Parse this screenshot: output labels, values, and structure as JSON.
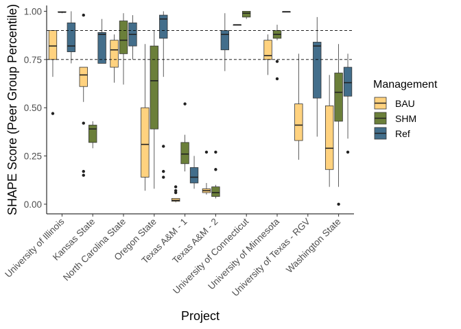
{
  "chart_data": {
    "type": "boxplot",
    "xlabel": "Project",
    "ylabel": "SHAPE Score (Peer Group Percentile)",
    "ylim": [
      -0.05,
      1.03
    ],
    "yticks": [
      0.0,
      0.25,
      0.5,
      0.75,
      1.0
    ],
    "ytick_labels": [
      "0.00",
      "0.25",
      "0.50",
      "0.75",
      "1.00"
    ],
    "reference_lines": [
      0.75,
      0.9
    ],
    "grid": false,
    "legend_position": "right",
    "legend_title": "Management",
    "series": [
      {
        "name": "BAU",
        "color": "#FFD27F"
      },
      {
        "name": "SHM",
        "color": "#6B7F3A"
      },
      {
        "name": "Ref",
        "color": "#436E8B"
      }
    ],
    "categories": [
      "University of Illinois",
      "Kansas State",
      "North Carolina State",
      "Oregon State",
      "Texas A&M - 1",
      "Texas A&M - 2",
      "University of Connecticut",
      "University of Minnesota",
      "University of Texas - RGV",
      "Washington State"
    ],
    "boxes": [
      {
        "category": "University of Illinois",
        "series": "BAU",
        "whisker_low": 0.66,
        "q1": 0.75,
        "median": 0.82,
        "q3": 0.9,
        "whisker_high": 0.9,
        "outliers": [
          0.47
        ]
      },
      {
        "category": "University of Illinois",
        "series": "SHM",
        "whisker_low": 0.99,
        "q1": 0.995,
        "median": 0.995,
        "q3": 0.998,
        "whisker_high": 1.0,
        "outliers": []
      },
      {
        "category": "University of Illinois",
        "series": "Ref",
        "whisker_low": 0.73,
        "q1": 0.79,
        "median": 0.82,
        "q3": 0.94,
        "whisker_high": 1.0,
        "outliers": []
      },
      {
        "category": "Kansas State",
        "series": "BAU",
        "whisker_low": 0.53,
        "q1": 0.61,
        "median": 0.67,
        "q3": 0.71,
        "whisker_high": 0.71,
        "outliers": [
          0.98,
          0.42,
          0.17,
          0.15
        ]
      },
      {
        "category": "Kansas State",
        "series": "SHM",
        "whisker_low": 0.29,
        "q1": 0.32,
        "median": 0.39,
        "q3": 0.41,
        "whisker_high": 0.43,
        "outliers": []
      },
      {
        "category": "Kansas State",
        "series": "Ref",
        "whisker_low": 0.73,
        "q1": 0.73,
        "median": 0.88,
        "q3": 0.89,
        "whisker_high": 0.96,
        "outliers": []
      },
      {
        "category": "North Carolina State",
        "series": "BAU",
        "whisker_low": 0.63,
        "q1": 0.71,
        "median": 0.8,
        "q3": 0.85,
        "whisker_high": 0.88,
        "outliers": []
      },
      {
        "category": "North Carolina State",
        "series": "SHM",
        "whisker_low": 0.62,
        "q1": 0.78,
        "median": 0.85,
        "q3": 0.95,
        "whisker_high": 0.99,
        "outliers": []
      },
      {
        "category": "North Carolina State",
        "series": "Ref",
        "whisker_low": 0.75,
        "q1": 0.82,
        "median": 0.88,
        "q3": 0.94,
        "whisker_high": 0.98,
        "outliers": []
      },
      {
        "category": "Oregon State",
        "series": "BAU",
        "whisker_low": 0.07,
        "q1": 0.14,
        "median": 0.31,
        "q3": 0.5,
        "whisker_high": 0.83,
        "outliers": []
      },
      {
        "category": "Oregon State",
        "series": "SHM",
        "whisker_low": 0.08,
        "q1": 0.39,
        "median": 0.64,
        "q3": 0.82,
        "whisker_high": 0.9,
        "outliers": []
      },
      {
        "category": "Oregon State",
        "series": "Ref",
        "whisker_low": 0.66,
        "q1": 0.86,
        "median": 0.96,
        "q3": 0.98,
        "whisker_high": 1.0,
        "outliers": [
          0.3,
          0.17,
          0.14
        ]
      },
      {
        "category": "Texas A&M - 1",
        "series": "BAU",
        "whisker_low": 0.01,
        "q1": 0.015,
        "median": 0.02,
        "q3": 0.03,
        "whisker_high": 0.03,
        "outliers": [
          0.09,
          0.07,
          0.06
        ]
      },
      {
        "category": "Texas A&M - 1",
        "series": "SHM",
        "whisker_low": 0.17,
        "q1": 0.21,
        "median": 0.26,
        "q3": 0.32,
        "whisker_high": 0.36,
        "outliers": [
          0.52
        ]
      },
      {
        "category": "Texas A&M - 1",
        "series": "Ref",
        "whisker_low": 0.08,
        "q1": 0.11,
        "median": 0.14,
        "q3": 0.19,
        "whisker_high": 0.25,
        "outliers": []
      },
      {
        "category": "Texas A&M - 2",
        "series": "BAU",
        "whisker_low": 0.05,
        "q1": 0.06,
        "median": 0.07,
        "q3": 0.08,
        "whisker_high": 0.11,
        "outliers": [
          0.27
        ]
      },
      {
        "category": "Texas A&M - 2",
        "series": "SHM",
        "whisker_low": 0.03,
        "q1": 0.04,
        "median": 0.06,
        "q3": 0.09,
        "whisker_high": 0.1,
        "outliers": [
          0.27,
          0.18
        ]
      },
      {
        "category": "Texas A&M - 2",
        "series": "Ref",
        "whisker_low": 0.69,
        "q1": 0.8,
        "median": 0.88,
        "q3": 0.9,
        "whisker_high": 0.99,
        "outliers": []
      },
      {
        "category": "University of Connecticut",
        "series": "BAU",
        "whisker_low": 0.93,
        "q1": 0.93,
        "median": 0.93,
        "q3": 0.93,
        "whisker_high": 0.93,
        "outliers": []
      },
      {
        "category": "University of Connecticut",
        "series": "SHM",
        "whisker_low": 0.96,
        "q1": 0.97,
        "median": 0.99,
        "q3": 1.0,
        "whisker_high": 1.0,
        "outliers": []
      },
      {
        "category": "University of Minnesota",
        "series": "BAU",
        "whisker_low": 0.67,
        "q1": 0.75,
        "median": 0.77,
        "q3": 0.85,
        "whisker_high": 0.88,
        "outliers": []
      },
      {
        "category": "University of Minnesota",
        "series": "SHM",
        "whisker_low": 0.85,
        "q1": 0.86,
        "median": 0.88,
        "q3": 0.9,
        "whisker_high": 0.93,
        "outliers": [
          0.74,
          0.65
        ]
      },
      {
        "category": "University of Minnesota",
        "series": "Ref",
        "whisker_low": 0.995,
        "q1": 0.995,
        "median": 0.998,
        "q3": 0.998,
        "whisker_high": 1.0,
        "outliers": []
      },
      {
        "category": "University of Texas - RGV",
        "series": "BAU",
        "whisker_low": 0.23,
        "q1": 0.33,
        "median": 0.41,
        "q3": 0.52,
        "whisker_high": 0.78,
        "outliers": []
      },
      {
        "category": "University of Texas - RGV",
        "series": "Ref",
        "whisker_low": 0.35,
        "q1": 0.55,
        "median": 0.82,
        "q3": 0.84,
        "whisker_high": 0.97,
        "outliers": []
      },
      {
        "category": "Washington State",
        "series": "BAU",
        "whisker_low": 0.09,
        "q1": 0.18,
        "median": 0.29,
        "q3": 0.51,
        "whisker_high": 0.67,
        "outliers": []
      },
      {
        "category": "Washington State",
        "series": "SHM",
        "whisker_low": 0.09,
        "q1": 0.43,
        "median": 0.58,
        "q3": 0.68,
        "whisker_high": 0.83,
        "outliers": [
          0.0
        ]
      },
      {
        "category": "Washington State",
        "series": "Ref",
        "whisker_low": 0.34,
        "q1": 0.56,
        "median": 0.63,
        "q3": 0.71,
        "whisker_high": 0.78,
        "outliers": [
          0.27
        ]
      }
    ]
  }
}
